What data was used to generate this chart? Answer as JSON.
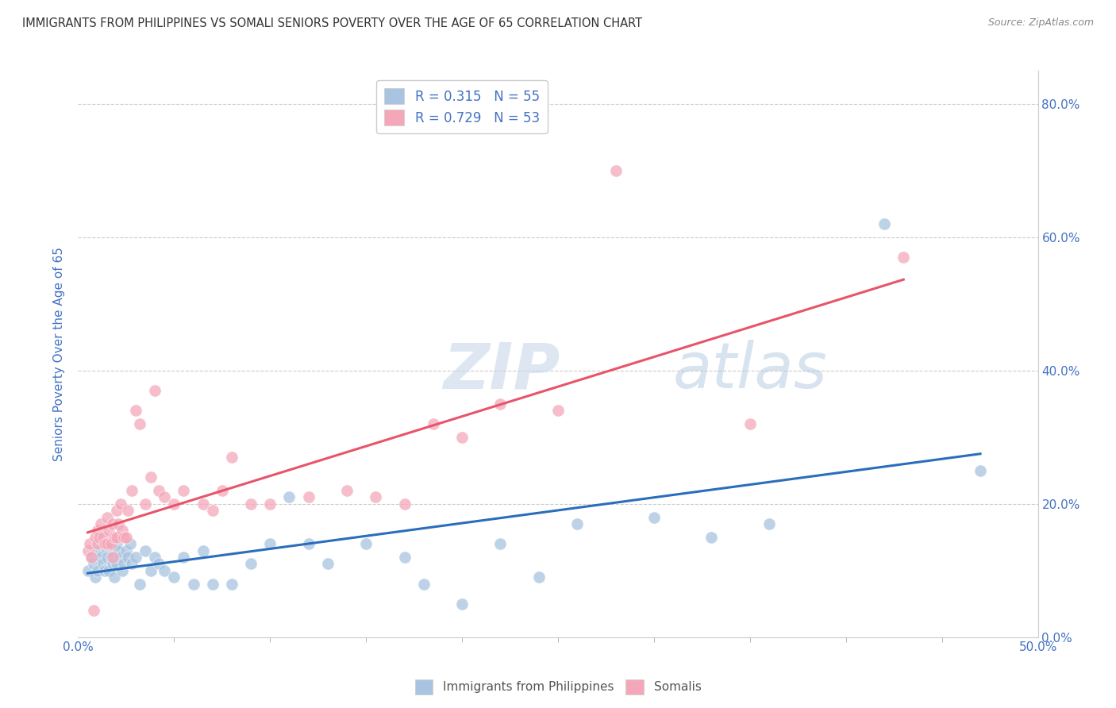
{
  "title": "IMMIGRANTS FROM PHILIPPINES VS SOMALI SENIORS POVERTY OVER THE AGE OF 65 CORRELATION CHART",
  "source": "Source: ZipAtlas.com",
  "ylabel": "Seniors Poverty Over the Age of 65",
  "xlim": [
    0.0,
    0.5
  ],
  "ylim": [
    0.0,
    0.85
  ],
  "r_philippines": 0.315,
  "n_philippines": 55,
  "r_somali": 0.729,
  "n_somali": 53,
  "philippines_color": "#a8c4e0",
  "somali_color": "#f4a7b9",
  "philippines_line_color": "#2a6ebb",
  "somali_line_color": "#e8546a",
  "legend_label_philippines": "Immigrants from Philippines",
  "legend_label_somali": "Somalis",
  "philippines_x": [
    0.005,
    0.007,
    0.008,
    0.009,
    0.01,
    0.01,
    0.012,
    0.013,
    0.014,
    0.015,
    0.015,
    0.016,
    0.017,
    0.018,
    0.019,
    0.02,
    0.02,
    0.021,
    0.022,
    0.023,
    0.024,
    0.025,
    0.026,
    0.027,
    0.028,
    0.03,
    0.032,
    0.035,
    0.038,
    0.04,
    0.042,
    0.045,
    0.05,
    0.055,
    0.06,
    0.065,
    0.07,
    0.08,
    0.09,
    0.1,
    0.11,
    0.12,
    0.13,
    0.15,
    0.17,
    0.18,
    0.2,
    0.22,
    0.24,
    0.26,
    0.3,
    0.33,
    0.36,
    0.42,
    0.47
  ],
  "philippines_y": [
    0.1,
    0.12,
    0.11,
    0.09,
    0.13,
    0.1,
    0.12,
    0.11,
    0.1,
    0.13,
    0.12,
    0.1,
    0.12,
    0.11,
    0.09,
    0.14,
    0.11,
    0.13,
    0.12,
    0.1,
    0.11,
    0.13,
    0.12,
    0.14,
    0.11,
    0.12,
    0.08,
    0.13,
    0.1,
    0.12,
    0.11,
    0.1,
    0.09,
    0.12,
    0.08,
    0.13,
    0.08,
    0.08,
    0.11,
    0.14,
    0.21,
    0.14,
    0.11,
    0.14,
    0.12,
    0.08,
    0.05,
    0.14,
    0.09,
    0.17,
    0.18,
    0.15,
    0.17,
    0.62,
    0.25
  ],
  "somali_x": [
    0.005,
    0.006,
    0.007,
    0.008,
    0.009,
    0.01,
    0.01,
    0.011,
    0.012,
    0.013,
    0.014,
    0.015,
    0.015,
    0.016,
    0.017,
    0.018,
    0.018,
    0.019,
    0.02,
    0.02,
    0.021,
    0.022,
    0.023,
    0.024,
    0.025,
    0.026,
    0.028,
    0.03,
    0.032,
    0.035,
    0.038,
    0.04,
    0.042,
    0.045,
    0.05,
    0.055,
    0.065,
    0.07,
    0.075,
    0.08,
    0.09,
    0.1,
    0.12,
    0.14,
    0.155,
    0.17,
    0.185,
    0.2,
    0.22,
    0.25,
    0.28,
    0.35,
    0.43
  ],
  "somali_y": [
    0.13,
    0.14,
    0.12,
    0.04,
    0.15,
    0.16,
    0.14,
    0.15,
    0.17,
    0.15,
    0.14,
    0.18,
    0.14,
    0.16,
    0.14,
    0.17,
    0.12,
    0.15,
    0.19,
    0.15,
    0.17,
    0.2,
    0.16,
    0.15,
    0.15,
    0.19,
    0.22,
    0.34,
    0.32,
    0.2,
    0.24,
    0.37,
    0.22,
    0.21,
    0.2,
    0.22,
    0.2,
    0.19,
    0.22,
    0.27,
    0.2,
    0.2,
    0.21,
    0.22,
    0.21,
    0.2,
    0.32,
    0.3,
    0.35,
    0.34,
    0.7,
    0.32,
    0.57
  ],
  "background_color": "#ffffff",
  "grid_color": "#cccccc",
  "title_color": "#333333",
  "tick_color": "#4472c4",
  "ylabel_vals": [
    0.0,
    0.2,
    0.4,
    0.6,
    0.8
  ],
  "ylabel_ticks": [
    "0.0%",
    "20.0%",
    "40.0%",
    "60.0%",
    "80.0%"
  ],
  "xlabel_minor_vals": [
    0.0,
    0.05,
    0.1,
    0.15,
    0.2,
    0.25,
    0.3,
    0.35,
    0.4,
    0.45,
    0.5
  ]
}
